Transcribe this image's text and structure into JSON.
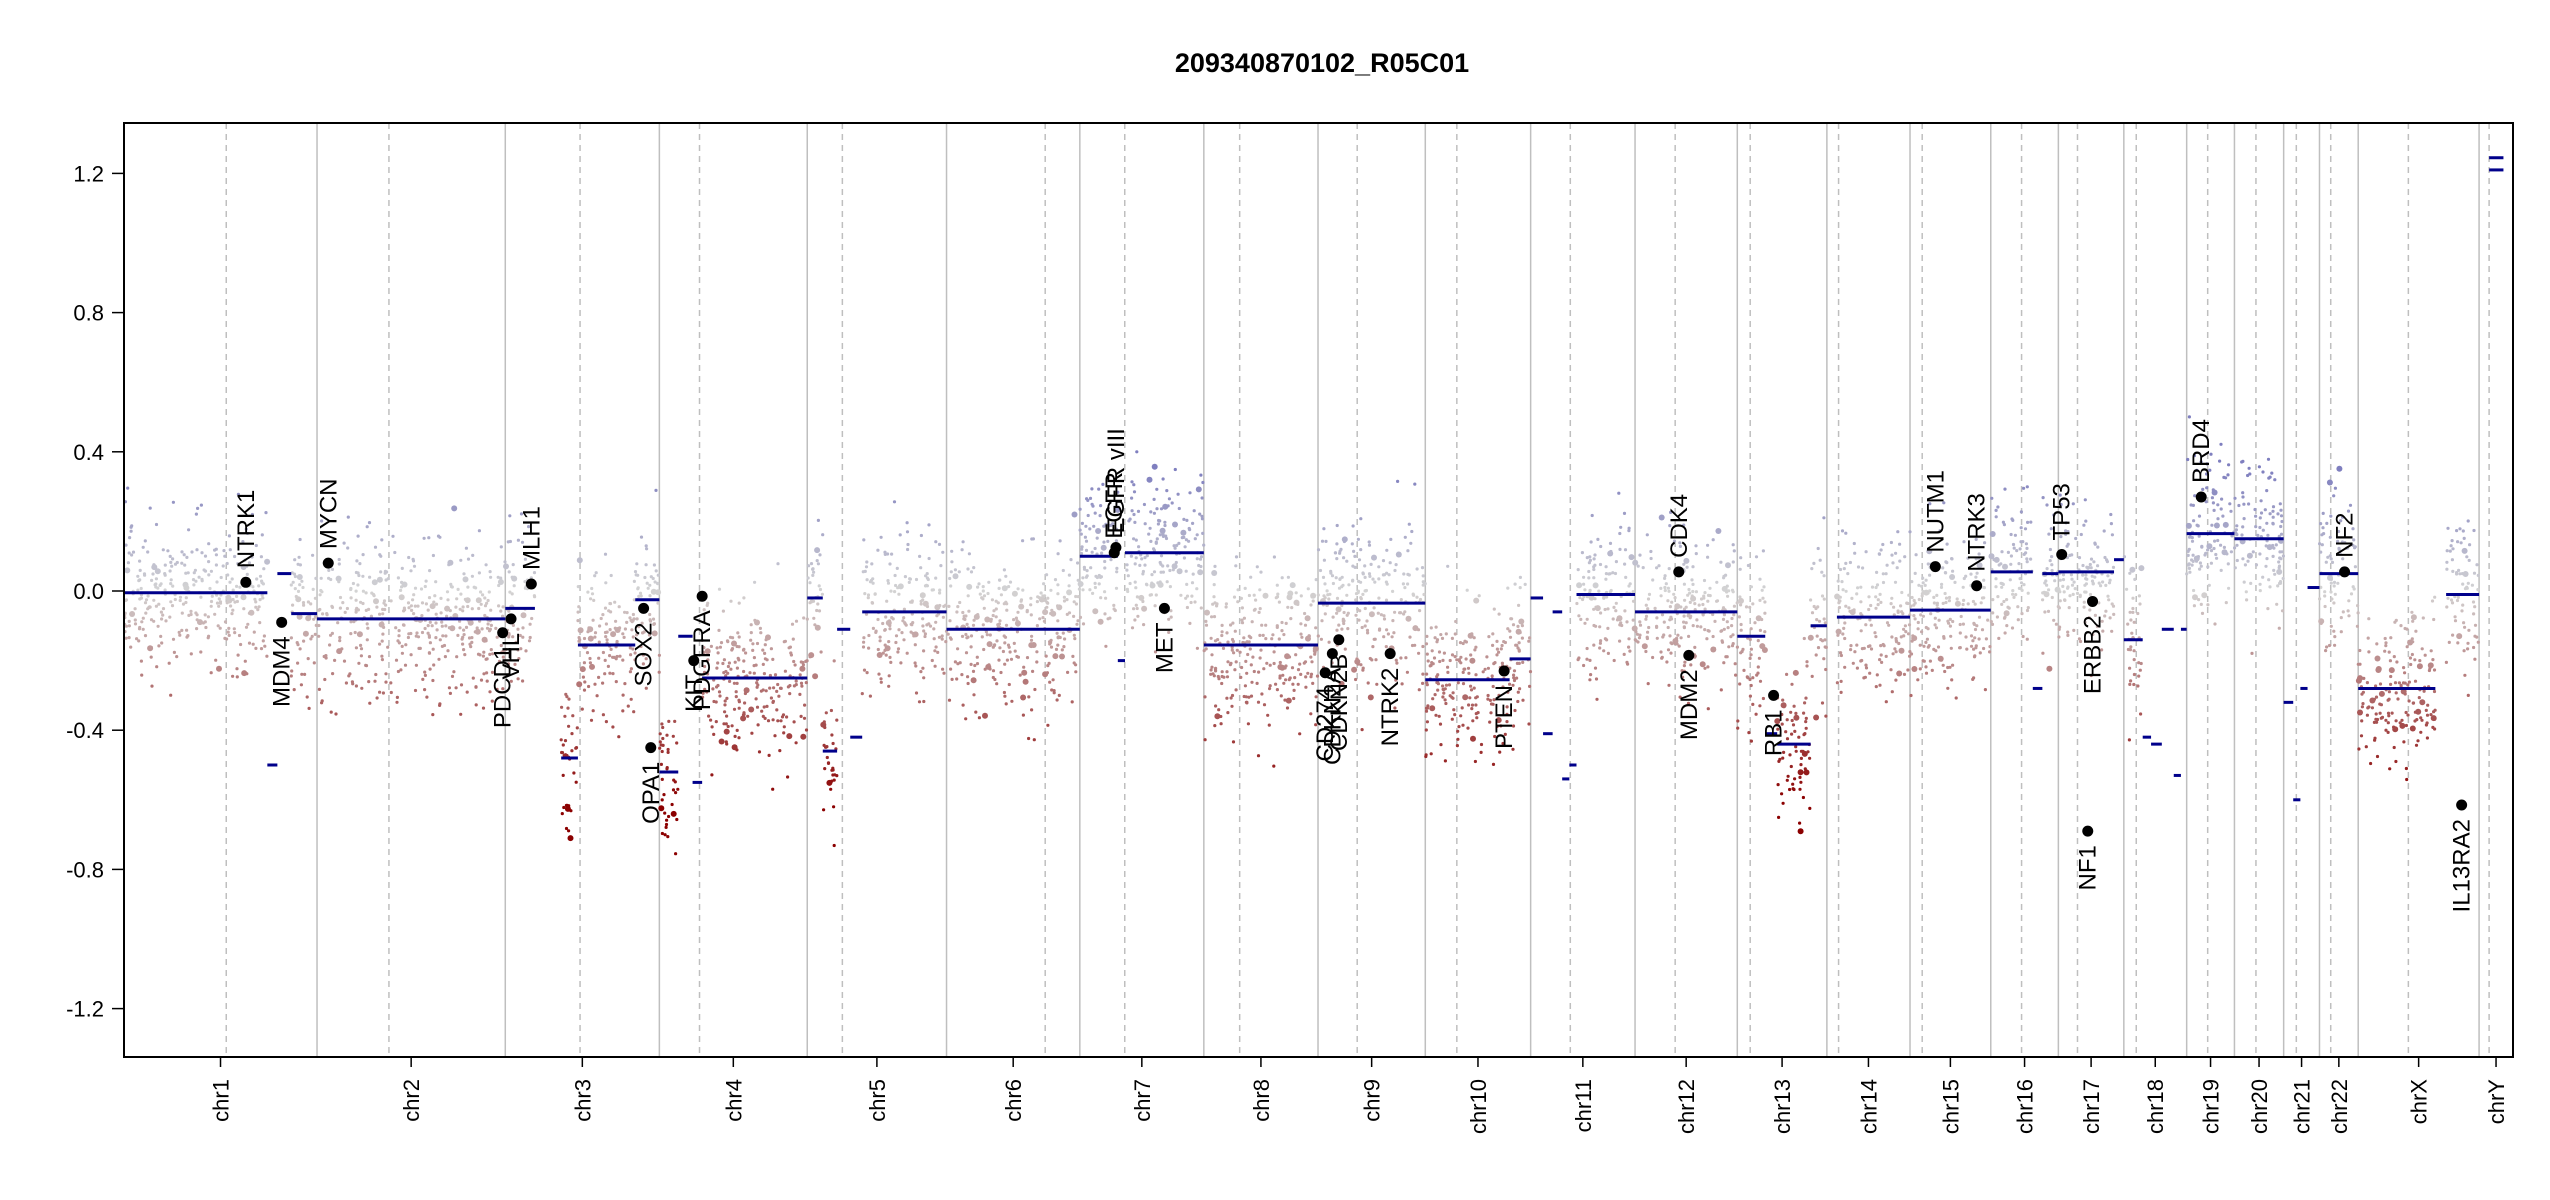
{
  "chart_data": {
    "type": "scatter",
    "title": "209340870102_R05C01",
    "xlabel": "",
    "ylabel": "",
    "ylim": [
      -1.35,
      1.35
    ],
    "y_ticks": [
      -1.2,
      -0.8,
      -0.4,
      0.0,
      0.4,
      0.8,
      1.2
    ],
    "y_tick_labels": [
      "-1.2",
      "-0.8",
      "-0.4",
      "0.0",
      "0.4",
      "0.8",
      "1.2"
    ],
    "grid": false,
    "colors": {
      "gain": "#7f7fbf",
      "neutral": "#d3d3d3",
      "loss": "#8b0000",
      "segment": "#00008b",
      "gene_point": "#000000",
      "chrom_border": "#bfbfbf",
      "centromere": "#bfbfbf"
    },
    "chromosomes": [
      {
        "name": "chr1",
        "start": 0.0,
        "end": 0.0808,
        "centromere": 0.0428
      },
      {
        "name": "chr2",
        "start": 0.0808,
        "end": 0.1596,
        "centromere": 0.1109
      },
      {
        "name": "chr3",
        "start": 0.1596,
        "end": 0.2241,
        "centromere": 0.1909
      },
      {
        "name": "chr4",
        "start": 0.2241,
        "end": 0.286,
        "centromere": 0.2409
      },
      {
        "name": "chr5",
        "start": 0.286,
        "end": 0.3443,
        "centromere": 0.3007
      },
      {
        "name": "chr6",
        "start": 0.3443,
        "end": 0.4001,
        "centromere": 0.3856
      },
      {
        "name": "chr7",
        "start": 0.4001,
        "end": 0.452,
        "centromere": 0.4189
      },
      {
        "name": "chr8",
        "start": 0.452,
        "end": 0.4998,
        "centromere": 0.467
      },
      {
        "name": "chr9",
        "start": 0.4998,
        "end": 0.5447,
        "centromere": 0.5162
      },
      {
        "name": "chr10",
        "start": 0.5447,
        "end": 0.5888,
        "centromere": 0.5579
      },
      {
        "name": "chr11",
        "start": 0.5888,
        "end": 0.6325,
        "centromere": 0.6054
      },
      {
        "name": "chr12",
        "start": 0.6325,
        "end": 0.6753,
        "centromere": 0.6493
      },
      {
        "name": "chr13",
        "start": 0.6753,
        "end": 0.7128,
        "centromere": 0.6807
      },
      {
        "name": "chr14",
        "start": 0.7128,
        "end": 0.7476,
        "centromere": 0.7177
      },
      {
        "name": "chr15",
        "start": 0.7476,
        "end": 0.7814,
        "centromere": 0.7527
      },
      {
        "name": "chr16",
        "start": 0.7814,
        "end": 0.8097,
        "centromere": 0.7943
      },
      {
        "name": "chr17",
        "start": 0.8097,
        "end": 0.8371,
        "centromere": 0.8177
      },
      {
        "name": "chr18",
        "start": 0.8371,
        "end": 0.8634,
        "centromere": 0.8423
      },
      {
        "name": "chr19",
        "start": 0.8634,
        "end": 0.8834,
        "centromere": 0.8722
      },
      {
        "name": "chr20",
        "start": 0.8834,
        "end": 0.904,
        "centromere": 0.8924
      },
      {
        "name": "chr21",
        "start": 0.904,
        "end": 0.919,
        "centromere": 0.9093
      },
      {
        "name": "chr22",
        "start": 0.919,
        "end": 0.9352,
        "centromere": 0.9237
      },
      {
        "name": "chrX",
        "start": 0.9352,
        "end": 0.9858,
        "centromere": 0.9562
      },
      {
        "name": "chrY",
        "start": 0.9858,
        "end": 1.0,
        "centromere": 0.99
      }
    ],
    "segments": [
      {
        "x0": 0.0,
        "x1": 0.06,
        "y": -0.005
      },
      {
        "x0": 0.06,
        "x1": 0.0642,
        "y": -0.5
      },
      {
        "x0": 0.0642,
        "x1": 0.07,
        "y": 0.05
      },
      {
        "x0": 0.07,
        "x1": 0.0808,
        "y": -0.065
      },
      {
        "x0": 0.0808,
        "x1": 0.1596,
        "y": -0.08
      },
      {
        "x0": 0.1596,
        "x1": 0.172,
        "y": -0.05
      },
      {
        "x0": 0.183,
        "x1": 0.19,
        "y": -0.48
      },
      {
        "x0": 0.19,
        "x1": 0.214,
        "y": -0.155
      },
      {
        "x0": 0.214,
        "x1": 0.2241,
        "y": -0.025
      },
      {
        "x0": 0.2241,
        "x1": 0.232,
        "y": -0.52
      },
      {
        "x0": 0.232,
        "x1": 0.238,
        "y": -0.13
      },
      {
        "x0": 0.238,
        "x1": 0.242,
        "y": -0.55
      },
      {
        "x0": 0.242,
        "x1": 0.286,
        "y": -0.25
      },
      {
        "x0": 0.286,
        "x1": 0.2925,
        "y": -0.02
      },
      {
        "x0": 0.2925,
        "x1": 0.2985,
        "y": -0.46
      },
      {
        "x0": 0.2985,
        "x1": 0.304,
        "y": -0.11
      },
      {
        "x0": 0.304,
        "x1": 0.309,
        "y": -0.42
      },
      {
        "x0": 0.309,
        "x1": 0.3443,
        "y": -0.06
      },
      {
        "x0": 0.3443,
        "x1": 0.4001,
        "y": -0.11
      },
      {
        "x0": 0.4001,
        "x1": 0.416,
        "y": 0.1
      },
      {
        "x0": 0.416,
        "x1": 0.419,
        "y": -0.2
      },
      {
        "x0": 0.419,
        "x1": 0.452,
        "y": 0.11
      },
      {
        "x0": 0.452,
        "x1": 0.4998,
        "y": -0.155
      },
      {
        "x0": 0.4998,
        "x1": 0.5447,
        "y": -0.035
      },
      {
        "x0": 0.5447,
        "x1": 0.58,
        "y": -0.255
      },
      {
        "x0": 0.58,
        "x1": 0.5888,
        "y": -0.195
      },
      {
        "x0": 0.5888,
        "x1": 0.594,
        "y": -0.02
      },
      {
        "x0": 0.594,
        "x1": 0.598,
        "y": -0.41
      },
      {
        "x0": 0.598,
        "x1": 0.602,
        "y": -0.06
      },
      {
        "x0": 0.602,
        "x1": 0.605,
        "y": -0.54
      },
      {
        "x0": 0.605,
        "x1": 0.608,
        "y": -0.5
      },
      {
        "x0": 0.608,
        "x1": 0.6325,
        "y": -0.01
      },
      {
        "x0": 0.6325,
        "x1": 0.6753,
        "y": -0.06
      },
      {
        "x0": 0.6753,
        "x1": 0.687,
        "y": -0.13
      },
      {
        "x0": 0.687,
        "x1": 0.692,
        "y": -0.41
      },
      {
        "x0": 0.692,
        "x1": 0.706,
        "y": -0.44
      },
      {
        "x0": 0.706,
        "x1": 0.7128,
        "y": -0.1
      },
      {
        "x0": 0.717,
        "x1": 0.7476,
        "y": -0.075
      },
      {
        "x0": 0.7476,
        "x1": 0.7814,
        "y": -0.055
      },
      {
        "x0": 0.7814,
        "x1": 0.799,
        "y": 0.055
      },
      {
        "x0": 0.799,
        "x1": 0.803,
        "y": -0.28
      },
      {
        "x0": 0.803,
        "x1": 0.8097,
        "y": 0.05
      },
      {
        "x0": 0.8097,
        "x1": 0.833,
        "y": 0.055
      },
      {
        "x0": 0.833,
        "x1": 0.8371,
        "y": 0.09
      },
      {
        "x0": 0.8371,
        "x1": 0.845,
        "y": -0.14
      },
      {
        "x0": 0.845,
        "x1": 0.8485,
        "y": -0.42
      },
      {
        "x0": 0.8485,
        "x1": 0.853,
        "y": -0.44
      },
      {
        "x0": 0.853,
        "x1": 0.858,
        "y": -0.11
      },
      {
        "x0": 0.858,
        "x1": 0.861,
        "y": -0.53
      },
      {
        "x0": 0.861,
        "x1": 0.8634,
        "y": -0.11
      },
      {
        "x0": 0.8634,
        "x1": 0.8834,
        "y": 0.165
      },
      {
        "x0": 0.8834,
        "x1": 0.904,
        "y": 0.15
      },
      {
        "x0": 0.904,
        "x1": 0.908,
        "y": -0.32
      },
      {
        "x0": 0.908,
        "x1": 0.911,
        "y": -0.6
      },
      {
        "x0": 0.911,
        "x1": 0.914,
        "y": -0.28
      },
      {
        "x0": 0.914,
        "x1": 0.919,
        "y": 0.01
      },
      {
        "x0": 0.919,
        "x1": 0.9352,
        "y": 0.05
      },
      {
        "x0": 0.9352,
        "x1": 0.9675,
        "y": -0.28
      },
      {
        "x0": 0.972,
        "x1": 0.9858,
        "y": -0.01
      },
      {
        "x0": 0.99,
        "x1": 0.996,
        "y": 1.21
      },
      {
        "x0": 0.99,
        "x1": 0.996,
        "y": 1.245
      }
    ],
    "genes": [
      {
        "name": "NTRK1",
        "x": 0.051,
        "y": 0.025,
        "label_side": "above"
      },
      {
        "name": "MDM4",
        "x": 0.066,
        "y": -0.09,
        "label_side": "below"
      },
      {
        "name": "MYCN",
        "x": 0.0855,
        "y": 0.08,
        "label_side": "above"
      },
      {
        "name": "PDCD1",
        "x": 0.1585,
        "y": -0.12,
        "label_side": "below"
      },
      {
        "name": "VHL",
        "x": 0.162,
        "y": -0.08,
        "label_side": "below"
      },
      {
        "name": "MLH1",
        "x": 0.1705,
        "y": 0.02,
        "label_side": "above"
      },
      {
        "name": "SOX2",
        "x": 0.2175,
        "y": -0.05,
        "label_side": "below"
      },
      {
        "name": "OPA1",
        "x": 0.2205,
        "y": -0.45,
        "label_side": "below"
      },
      {
        "name": "KIT",
        "x": 0.2385,
        "y": -0.2,
        "label_side": "below"
      },
      {
        "name": "PDGFRA",
        "x": 0.242,
        "y": -0.015,
        "label_side": "below"
      },
      {
        "name": "EGFR",
        "x": 0.4145,
        "y": 0.11,
        "label_side": "above"
      },
      {
        "name": "EGFR_vIII",
        "x": 0.4152,
        "y": 0.125,
        "label_side": "above"
      },
      {
        "name": "MET",
        "x": 0.4355,
        "y": -0.05,
        "label_side": "below"
      },
      {
        "name": "CD274",
        "x": 0.5028,
        "y": -0.235,
        "label_side": "below"
      },
      {
        "name": "CDKN2A",
        "x": 0.5058,
        "y": -0.18,
        "label_side": "below"
      },
      {
        "name": "CDKN2B",
        "x": 0.5085,
        "y": -0.14,
        "label_side": "below"
      },
      {
        "name": "NTRK2",
        "x": 0.53,
        "y": -0.18,
        "label_side": "below"
      },
      {
        "name": "PTEN",
        "x": 0.5777,
        "y": -0.23,
        "label_side": "below"
      },
      {
        "name": "CDK4",
        "x": 0.6508,
        "y": 0.055,
        "label_side": "above"
      },
      {
        "name": "MDM2",
        "x": 0.655,
        "y": -0.185,
        "label_side": "below"
      },
      {
        "name": "RB1",
        "x": 0.6905,
        "y": -0.3,
        "label_side": "below"
      },
      {
        "name": "NUTM1",
        "x": 0.7582,
        "y": 0.07,
        "label_side": "above"
      },
      {
        "name": "NTRK3",
        "x": 0.7755,
        "y": 0.015,
        "label_side": "above"
      },
      {
        "name": "TP53",
        "x": 0.8111,
        "y": 0.105,
        "label_side": "above"
      },
      {
        "name": "ERBB2",
        "x": 0.824,
        "y": -0.03,
        "label_side": "below"
      },
      {
        "name": "NF1",
        "x": 0.822,
        "y": -0.69,
        "label_side": "below"
      },
      {
        "name": "BRD4",
        "x": 0.8695,
        "y": 0.27,
        "label_side": "above"
      },
      {
        "name": "NF2",
        "x": 0.9295,
        "y": 0.055,
        "label_side": "above"
      },
      {
        "name": "IL13RA2",
        "x": 0.9785,
        "y": -0.615,
        "label_side": "below"
      }
    ]
  }
}
